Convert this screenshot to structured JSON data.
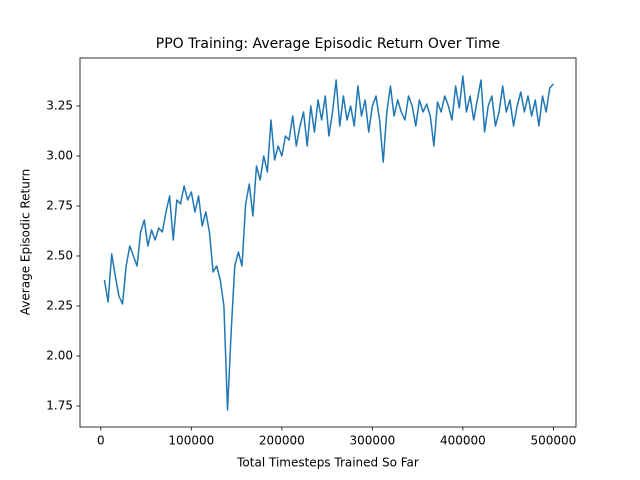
{
  "chart_data": {
    "type": "line",
    "title": "PPO Training: Average Episodic Return Over Time",
    "x_label": "Total Timesteps Trained So Far",
    "y_label": "Average Episodic Return",
    "x": [
      4000,
      8000,
      12000,
      16000,
      20000,
      24000,
      28000,
      32000,
      36000,
      40000,
      44000,
      48000,
      52000,
      56000,
      60000,
      64000,
      68000,
      72000,
      76000,
      80000,
      84000,
      88000,
      92000,
      96000,
      100000,
      104000,
      108000,
      112000,
      116000,
      120000,
      124000,
      128000,
      132000,
      136000,
      140000,
      144000,
      148000,
      152000,
      156000,
      160000,
      164000,
      168000,
      172000,
      176000,
      180000,
      184000,
      188000,
      192000,
      196000,
      200000,
      204000,
      208000,
      212000,
      216000,
      220000,
      224000,
      228000,
      232000,
      236000,
      240000,
      244000,
      248000,
      252000,
      256000,
      260000,
      264000,
      268000,
      272000,
      276000,
      280000,
      284000,
      288000,
      292000,
      296000,
      300000,
      304000,
      308000,
      312000,
      316000,
      320000,
      324000,
      328000,
      332000,
      336000,
      340000,
      344000,
      348000,
      352000,
      356000,
      360000,
      364000,
      368000,
      372000,
      376000,
      380000,
      384000,
      388000,
      392000,
      396000,
      400000,
      404000,
      408000,
      412000,
      416000,
      420000,
      424000,
      428000,
      432000,
      436000,
      440000,
      444000,
      448000,
      452000,
      456000,
      460000,
      464000,
      468000,
      472000,
      476000,
      480000,
      484000,
      488000,
      492000,
      496000,
      500000
    ],
    "series": [
      {
        "name": "Average Episodic Return",
        "color": "#1f77b4",
        "values": [
          2.38,
          2.27,
          2.51,
          2.4,
          2.3,
          2.26,
          2.45,
          2.55,
          2.5,
          2.45,
          2.62,
          2.68,
          2.55,
          2.63,
          2.58,
          2.64,
          2.62,
          2.72,
          2.8,
          2.58,
          2.78,
          2.76,
          2.85,
          2.78,
          2.82,
          2.72,
          2.8,
          2.65,
          2.72,
          2.62,
          2.42,
          2.45,
          2.38,
          2.25,
          1.73,
          2.12,
          2.45,
          2.52,
          2.45,
          2.76,
          2.86,
          2.7,
          2.95,
          2.88,
          3.0,
          2.92,
          3.18,
          2.98,
          3.05,
          3.0,
          3.1,
          3.08,
          3.2,
          3.05,
          3.15,
          3.22,
          3.05,
          3.25,
          3.12,
          3.28,
          3.18,
          3.3,
          3.1,
          3.22,
          3.38,
          3.15,
          3.3,
          3.18,
          3.25,
          3.15,
          3.35,
          3.2,
          3.28,
          3.12,
          3.25,
          3.3,
          3.18,
          2.97,
          3.22,
          3.35,
          3.2,
          3.28,
          3.22,
          3.18,
          3.3,
          3.25,
          3.15,
          3.28,
          3.22,
          3.26,
          3.2,
          3.05,
          3.27,
          3.22,
          3.3,
          3.25,
          3.18,
          3.35,
          3.24,
          3.4,
          3.22,
          3.3,
          3.18,
          3.28,
          3.38,
          3.12,
          3.25,
          3.3,
          3.15,
          3.22,
          3.35,
          3.22,
          3.28,
          3.15,
          3.25,
          3.32,
          3.22,
          3.3,
          3.2,
          3.28,
          3.15,
          3.3,
          3.22,
          3.34,
          3.36
        ]
      }
    ],
    "xlim": [
      -23000,
      525000
    ],
    "ylim": [
      1.645,
      3.49
    ],
    "xticks": [
      0,
      100000,
      200000,
      300000,
      400000,
      500000
    ],
    "yticks": [
      {
        "value": 1.75,
        "label": "1.75"
      },
      {
        "value": 2,
        "label": "2.00"
      },
      {
        "value": 2.25,
        "label": "2.25"
      },
      {
        "value": 2.5,
        "label": "2.50"
      },
      {
        "value": 2.75,
        "label": "2.75"
      },
      {
        "value": 3,
        "label": "3.00"
      },
      {
        "value": 3.25,
        "label": "3.25"
      }
    ],
    "grid": false
  }
}
